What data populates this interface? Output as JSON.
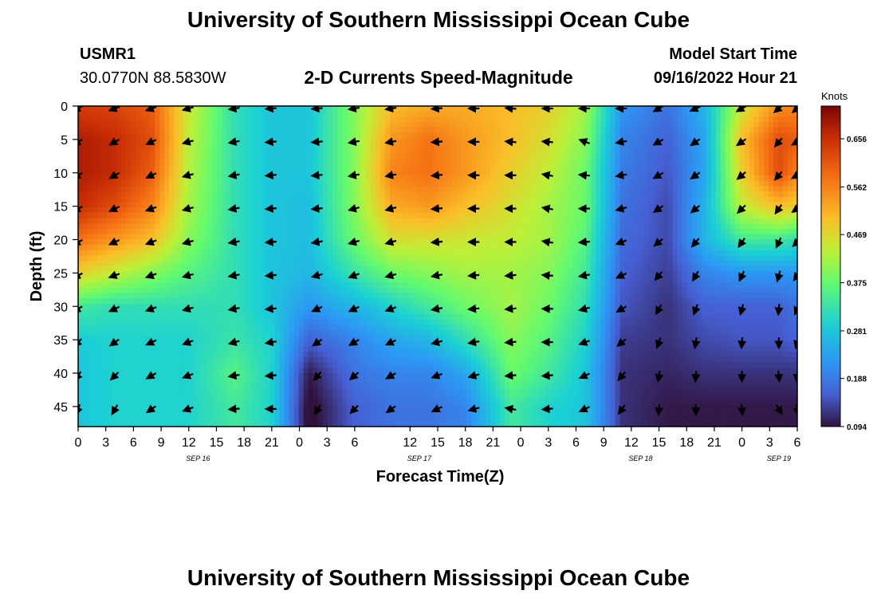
{
  "page": {
    "title": "University of Southern Mississippi Ocean Cube",
    "footer_title": "University of Southern Mississippi Ocean Cube",
    "station_id": "USMR1",
    "station_coords": "30.0770N  88.5830W",
    "model_start_label": "Model Start Time",
    "model_start_value": "09/16/2022 Hour 21"
  },
  "chart_data": {
    "type": "heatmap",
    "title": "2-D Currents Speed-Magnitude",
    "xlabel": "Forecast Time(Z)",
    "ylabel": "Depth (ft)",
    "colorbar_label": "Knots",
    "colorbar_ticks": [
      "0.656",
      "0.562",
      "0.469",
      "0.375",
      "0.281",
      "0.188",
      "0.094"
    ],
    "colorbar_range": [
      0.094,
      0.72
    ],
    "x_tick_labels": [
      "0",
      "3",
      "6",
      "9",
      "12",
      "15",
      "18",
      "21",
      "0",
      "3",
      "6",
      "12",
      "15",
      "18",
      "21",
      "0",
      "3",
      "6",
      "9",
      "12",
      "15",
      "18",
      "21",
      "0",
      "3",
      "6"
    ],
    "x_tick_hours": [
      0,
      3,
      6,
      9,
      12,
      15,
      18,
      21,
      24,
      27,
      30,
      36,
      39,
      42,
      45,
      48,
      51,
      54,
      57,
      60,
      63,
      66,
      69,
      72,
      75,
      78
    ],
    "date_labels": [
      {
        "text": "SEP 16",
        "hour": 13
      },
      {
        "text": "SEP 17",
        "hour": 37
      },
      {
        "text": "SEP 18",
        "hour": 61
      },
      {
        "text": "SEP 19",
        "hour": 76
      }
    ],
    "x_range_hours": [
      0,
      78
    ],
    "y_ticks": [
      0,
      5,
      10,
      15,
      20,
      25,
      30,
      35,
      40,
      45
    ],
    "y_range": [
      0,
      48
    ],
    "depths": [
      0,
      5,
      10,
      15,
      20,
      25,
      30,
      35,
      40,
      45
    ],
    "times": [
      0,
      4,
      8,
      12,
      17,
      21,
      25,
      30,
      34,
      38,
      42,
      47,
      51,
      55,
      59,
      64,
      68,
      72,
      76,
      78
    ],
    "speed": [
      [
        0.64,
        0.63,
        0.6,
        0.45,
        0.32,
        0.28,
        0.28,
        0.4,
        0.5,
        0.52,
        0.52,
        0.5,
        0.48,
        0.42,
        0.22,
        0.18,
        0.26,
        0.45,
        0.55,
        0.56
      ],
      [
        0.68,
        0.66,
        0.62,
        0.44,
        0.32,
        0.28,
        0.28,
        0.4,
        0.54,
        0.58,
        0.54,
        0.5,
        0.46,
        0.4,
        0.2,
        0.16,
        0.24,
        0.5,
        0.62,
        0.6
      ],
      [
        0.68,
        0.66,
        0.6,
        0.43,
        0.32,
        0.28,
        0.28,
        0.4,
        0.56,
        0.58,
        0.54,
        0.48,
        0.44,
        0.38,
        0.19,
        0.15,
        0.24,
        0.48,
        0.62,
        0.56
      ],
      [
        0.66,
        0.62,
        0.56,
        0.42,
        0.32,
        0.28,
        0.27,
        0.4,
        0.52,
        0.54,
        0.5,
        0.46,
        0.42,
        0.38,
        0.18,
        0.14,
        0.26,
        0.44,
        0.5,
        0.48
      ],
      [
        0.58,
        0.54,
        0.5,
        0.4,
        0.32,
        0.28,
        0.27,
        0.38,
        0.46,
        0.46,
        0.45,
        0.44,
        0.42,
        0.36,
        0.17,
        0.14,
        0.26,
        0.34,
        0.34,
        0.32
      ],
      [
        0.48,
        0.44,
        0.4,
        0.36,
        0.32,
        0.28,
        0.26,
        0.33,
        0.38,
        0.4,
        0.42,
        0.42,
        0.4,
        0.34,
        0.16,
        0.13,
        0.2,
        0.22,
        0.22,
        0.22
      ],
      [
        0.34,
        0.32,
        0.32,
        0.32,
        0.32,
        0.28,
        0.22,
        0.26,
        0.3,
        0.34,
        0.38,
        0.42,
        0.38,
        0.32,
        0.15,
        0.12,
        0.16,
        0.16,
        0.16,
        0.18
      ],
      [
        0.29,
        0.3,
        0.3,
        0.3,
        0.33,
        0.3,
        0.16,
        0.2,
        0.24,
        0.26,
        0.32,
        0.4,
        0.36,
        0.3,
        0.13,
        0.12,
        0.14,
        0.15,
        0.15,
        0.16
      ],
      [
        0.28,
        0.3,
        0.3,
        0.3,
        0.36,
        0.3,
        0.1,
        0.18,
        0.2,
        0.2,
        0.24,
        0.38,
        0.34,
        0.28,
        0.12,
        0.11,
        0.12,
        0.12,
        0.12,
        0.12
      ],
      [
        0.28,
        0.3,
        0.3,
        0.3,
        0.34,
        0.3,
        0.08,
        0.16,
        0.18,
        0.18,
        0.2,
        0.34,
        0.3,
        0.28,
        0.12,
        0.1,
        0.1,
        0.1,
        0.1,
        0.1
      ]
    ],
    "arrow_times": [
      0,
      4,
      8,
      12,
      17,
      21,
      26,
      30,
      34,
      39,
      43,
      47,
      51,
      55,
      59,
      63,
      67,
      72,
      76,
      78
    ],
    "arrow_direction_deg": [
      [
        240,
        250,
        250,
        255,
        260,
        265,
        265,
        260,
        260,
        265,
        270,
        275,
        270,
        270,
        270,
        240,
        245,
        240,
        230,
        230
      ],
      [
        240,
        240,
        245,
        255,
        260,
        265,
        265,
        260,
        260,
        265,
        270,
        275,
        275,
        290,
        260,
        240,
        235,
        235,
        220,
        240
      ],
      [
        240,
        240,
        245,
        255,
        260,
        265,
        265,
        260,
        260,
        265,
        270,
        270,
        280,
        275,
        260,
        240,
        235,
        230,
        220,
        240
      ],
      [
        245,
        245,
        250,
        255,
        260,
        265,
        265,
        255,
        255,
        265,
        270,
        270,
        280,
        270,
        255,
        235,
        230,
        225,
        215,
        235
      ],
      [
        245,
        245,
        250,
        255,
        260,
        265,
        260,
        255,
        255,
        265,
        270,
        270,
        280,
        265,
        250,
        230,
        220,
        215,
        205,
        225
      ],
      [
        245,
        250,
        250,
        255,
        260,
        265,
        255,
        250,
        255,
        260,
        265,
        265,
        275,
        260,
        245,
        220,
        210,
        205,
        195,
        215
      ],
      [
        240,
        245,
        250,
        255,
        260,
        265,
        245,
        245,
        250,
        260,
        265,
        265,
        270,
        255,
        240,
        210,
        200,
        195,
        185,
        205
      ],
      [
        225,
        235,
        245,
        250,
        255,
        260,
        235,
        240,
        245,
        255,
        260,
        265,
        270,
        250,
        230,
        200,
        190,
        185,
        180,
        195
      ],
      [
        215,
        225,
        240,
        250,
        260,
        265,
        220,
        230,
        240,
        250,
        255,
        265,
        265,
        245,
        220,
        190,
        185,
        180,
        175,
        185
      ],
      [
        200,
        210,
        235,
        250,
        265,
        270,
        210,
        225,
        235,
        245,
        255,
        280,
        265,
        245,
        215,
        185,
        180,
        175,
        150,
        165
      ]
    ]
  }
}
